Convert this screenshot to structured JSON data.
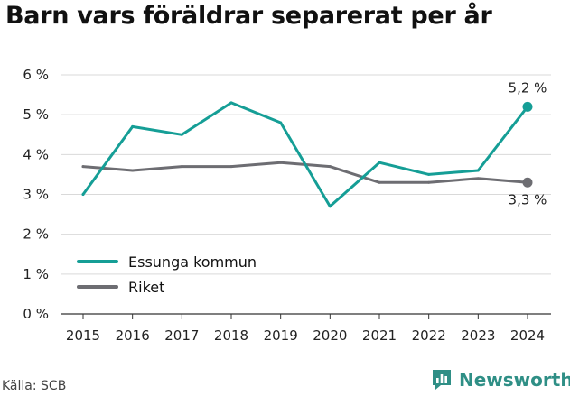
{
  "title": "Barn vars föräldrar separerat per år",
  "source": "Källa: SCB",
  "brand": {
    "name": "Newsworthy",
    "icon": "newsworthy-logo-icon"
  },
  "chart_data": {
    "type": "line",
    "categories": [
      "2015",
      "2016",
      "2017",
      "2018",
      "2019",
      "2020",
      "2021",
      "2022",
      "2023",
      "2024"
    ],
    "series": [
      {
        "name": "Essunga kommun",
        "color": "#159e96",
        "values": [
          3.0,
          4.7,
          4.5,
          5.3,
          4.8,
          2.7,
          3.8,
          3.5,
          3.6,
          5.2
        ],
        "end_label": "5,2 %"
      },
      {
        "name": "Riket",
        "color": "#6d6d72",
        "values": [
          3.7,
          3.6,
          3.7,
          3.7,
          3.8,
          3.7,
          3.3,
          3.3,
          3.4,
          3.3
        ],
        "end_label": "3,3 %"
      }
    ],
    "ylim": [
      0,
      6
    ],
    "yticks": [
      0,
      1,
      2,
      3,
      4,
      5,
      6
    ],
    "ytick_labels": [
      "0 %",
      "1 %",
      "2 %",
      "3 %",
      "4 %",
      "5 %",
      "6 %"
    ],
    "grid": true,
    "legend_placement": "bottom-left",
    "xlabel": "",
    "ylabel": ""
  }
}
